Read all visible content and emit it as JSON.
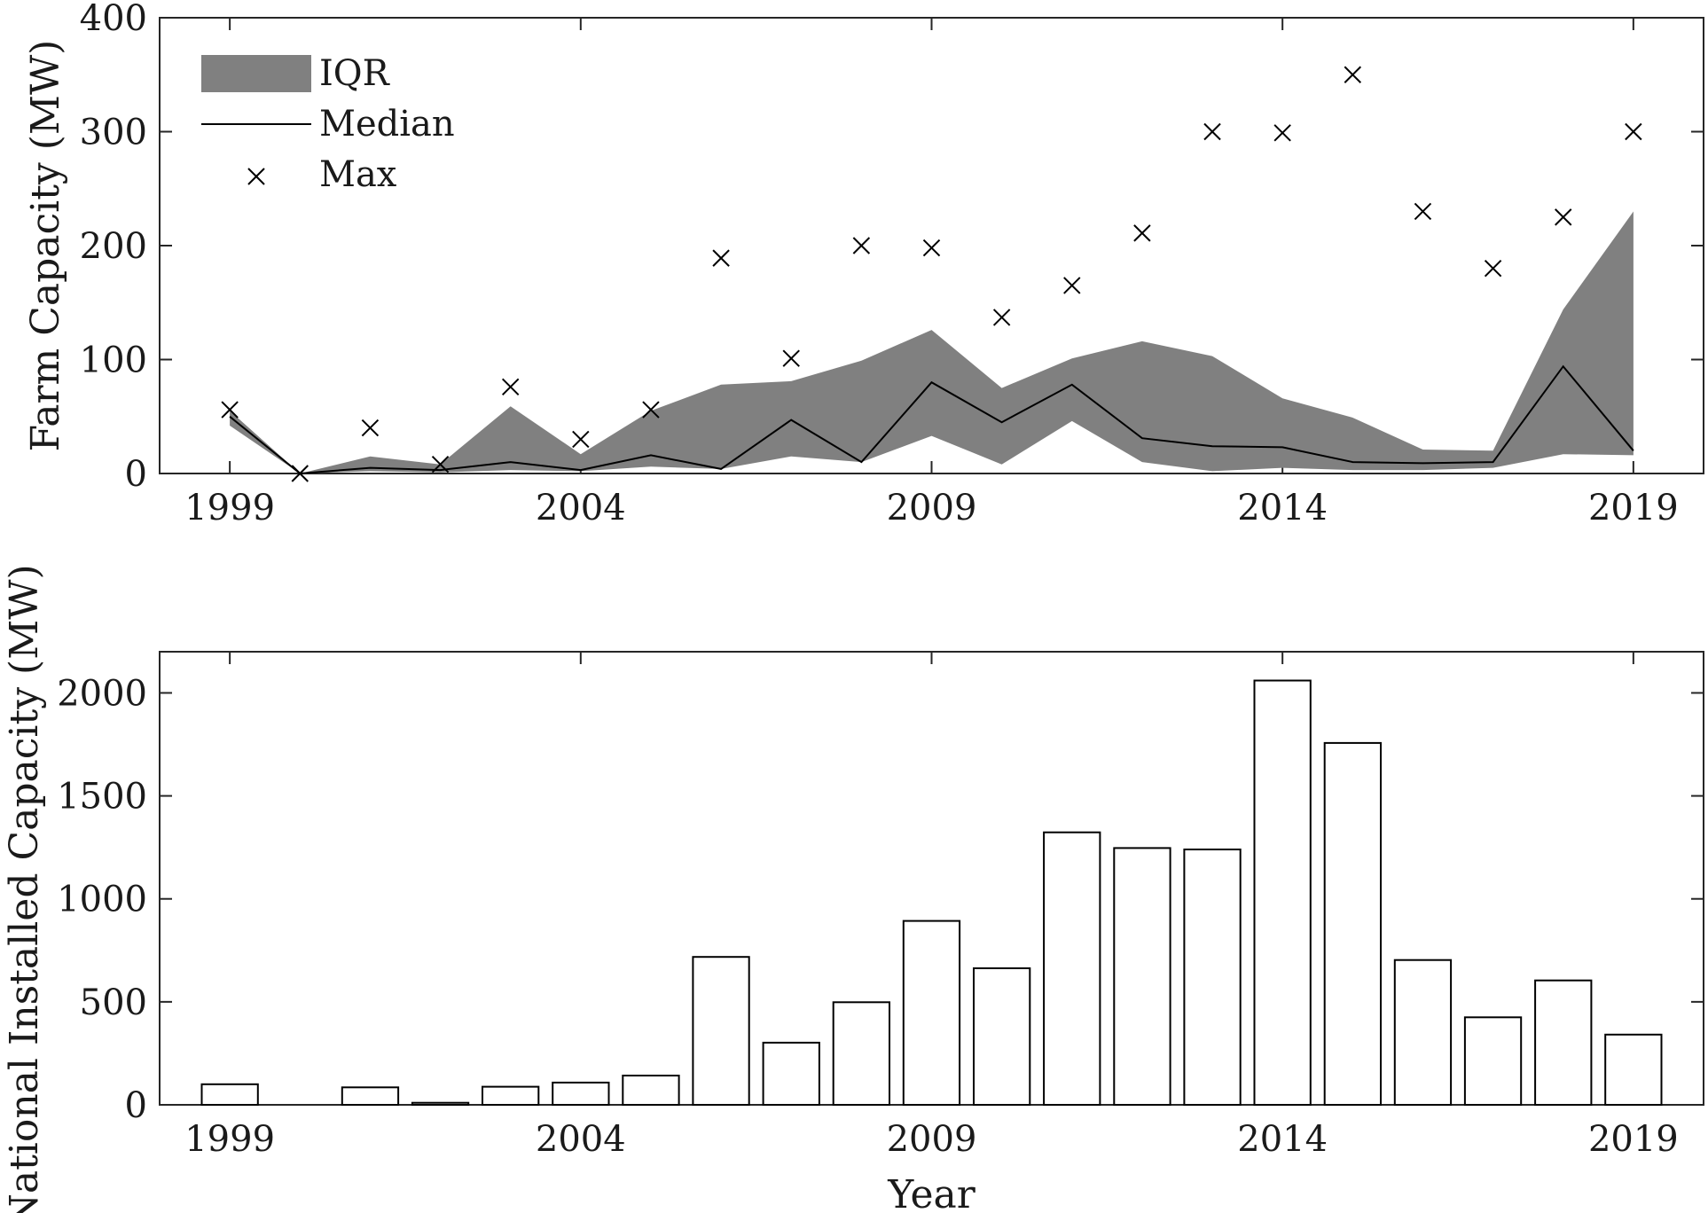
{
  "chart_data": [
    {
      "type": "area",
      "xlabel": "",
      "ylabel": "Farm Capacity (MW)",
      "xlim": [
        1998,
        2020
      ],
      "ylim": [
        0,
        400
      ],
      "xticks": [
        1999,
        2004,
        2009,
        2014,
        2019
      ],
      "yticks": [
        0,
        100,
        200,
        300,
        400
      ],
      "legend": {
        "position": "top-left",
        "labels": {
          "iqr": "IQR",
          "median": "Median",
          "max": "Max"
        }
      },
      "years": [
        1999,
        2000,
        2001,
        2002,
        2003,
        2004,
        2005,
        2006,
        2007,
        2008,
        2009,
        2010,
        2011,
        2012,
        2013,
        2014,
        2015,
        2016,
        2017,
        2018,
        2019
      ],
      "iqr_low": [
        42,
        0,
        2,
        1,
        3,
        2,
        6,
        4,
        15,
        10,
        33,
        8,
        46,
        10,
        2,
        5,
        3,
        3,
        5,
        17,
        16
      ],
      "iqr_high": [
        55,
        0,
        15,
        8,
        59,
        17,
        55,
        78,
        81,
        99,
        126,
        75,
        101,
        116,
        103,
        66,
        49,
        21,
        20,
        144,
        230
      ],
      "median": [
        50,
        0,
        5,
        3,
        10,
        3,
        16,
        4,
        47,
        10,
        80,
        45,
        78,
        31,
        24,
        23,
        10,
        9,
        10,
        94,
        20
      ],
      "max": [
        56,
        0,
        40,
        8,
        76,
        30,
        56,
        189,
        101,
        200,
        198,
        137,
        165,
        211,
        300,
        299,
        350,
        230,
        180,
        225,
        300
      ],
      "colors": {
        "iqr": "#808080",
        "median": "#000000",
        "max": "#000000"
      }
    },
    {
      "type": "bar",
      "xlabel": "Year",
      "ylabel": "National Installed Capacity (MW)",
      "xlim": [
        1998,
        2020
      ],
      "ylim": [
        0,
        2200
      ],
      "xticks": [
        1999,
        2004,
        2009,
        2014,
        2019
      ],
      "yticks": [
        0,
        500,
        1000,
        1500,
        2000
      ],
      "categories": [
        1999,
        2000,
        2001,
        2002,
        2003,
        2004,
        2005,
        2006,
        2007,
        2008,
        2009,
        2010,
        2011,
        2012,
        2013,
        2014,
        2015,
        2016,
        2017,
        2018,
        2019
      ],
      "values": [
        100,
        0,
        85,
        10,
        88,
        108,
        142,
        718,
        302,
        498,
        893,
        663,
        1323,
        1247,
        1240,
        2060,
        1757,
        703,
        425,
        604,
        341
      ],
      "colors": {
        "bar_fill": "#ffffff",
        "bar_stroke": "#000000"
      }
    }
  ]
}
